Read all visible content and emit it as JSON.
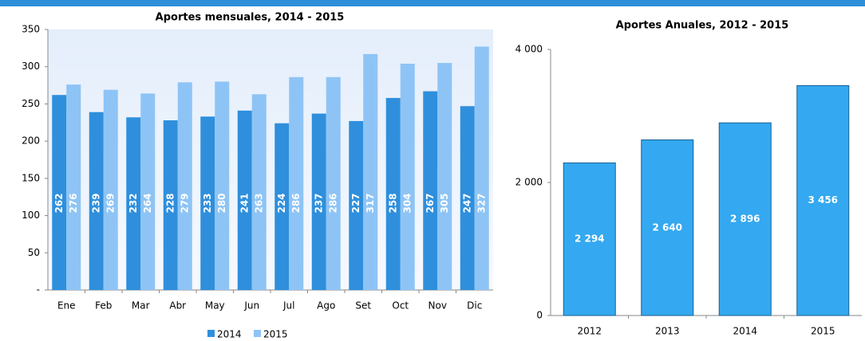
{
  "chart_data": [
    {
      "type": "bar",
      "title": "Aportes mensuales, 2014 - 2015",
      "categories": [
        "Ene",
        "Feb",
        "Mar",
        "Abr",
        "May",
        "Jun",
        "Jul",
        "Ago",
        "Set",
        "Oct",
        "Nov",
        "Dic"
      ],
      "series": [
        {
          "name": "2014",
          "color": "#2f8fdc",
          "values": [
            262,
            239,
            232,
            228,
            233,
            241,
            224,
            237,
            227,
            258,
            267,
            247
          ]
        },
        {
          "name": "2015",
          "color": "#8ec4f5",
          "values": [
            276,
            269,
            264,
            279,
            280,
            263,
            286,
            286,
            317,
            304,
            305,
            327
          ]
        }
      ],
      "ylim": [
        0,
        350
      ],
      "yticks": [
        {
          "value": 0,
          "label": "-"
        },
        50,
        100,
        150,
        200,
        250,
        300,
        350
      ],
      "legend": "bottom"
    },
    {
      "type": "bar",
      "title": "Aportes Anuales, 2012 - 2015",
      "categories": [
        "2012",
        "2013",
        "2014",
        "2015"
      ],
      "values": [
        2294,
        2640,
        2896,
        3456
      ],
      "value_labels": [
        "2 294",
        "2 640",
        "2 896",
        "3 456"
      ],
      "color": "#34a8f0",
      "ylim": [
        0,
        4000
      ],
      "yticks": [
        0,
        {
          "value": 2000,
          "label": "2 000"
        },
        {
          "value": 4000,
          "label": "4 000"
        }
      ]
    }
  ]
}
